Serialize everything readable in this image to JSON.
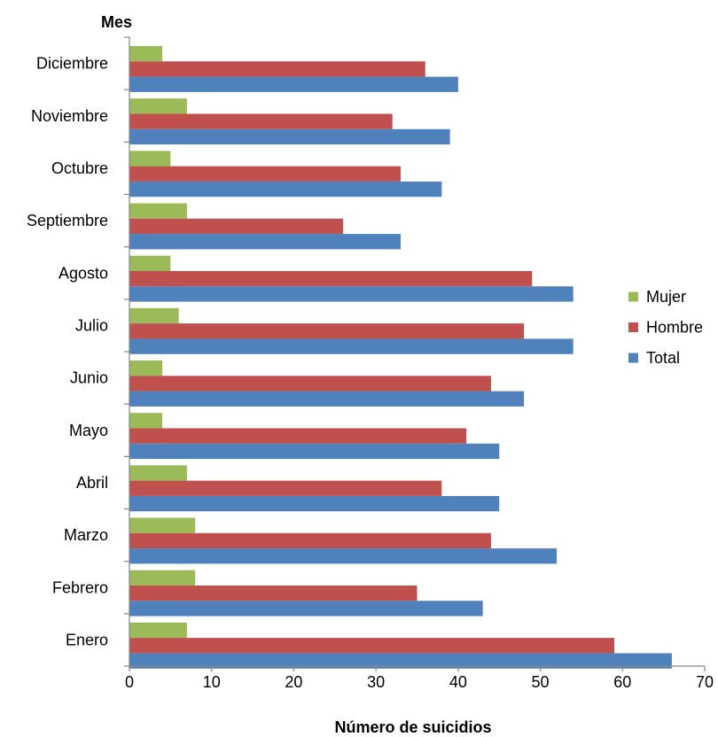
{
  "chart_data": {
    "type": "bar",
    "orientation": "horizontal",
    "title": "",
    "xlabel": "Número de suicidios",
    "ylabel": "Mes",
    "xlim": [
      0,
      70
    ],
    "xticks": [
      0,
      10,
      20,
      30,
      40,
      50,
      60,
      70
    ],
    "grid": false,
    "legend_position": "right",
    "categories": [
      "Enero",
      "Febrero",
      "Marzo",
      "Abril",
      "Mayo",
      "Junio",
      "Julio",
      "Agosto",
      "Septiembre",
      "Octubre",
      "Noviembre",
      "Diciembre"
    ],
    "series": [
      {
        "name": "Mujer",
        "color": "#9BBB59",
        "values": [
          7,
          8,
          8,
          7,
          4,
          4,
          6,
          5,
          7,
          5,
          7,
          4
        ]
      },
      {
        "name": "Hombre",
        "color": "#C0504D",
        "values": [
          59,
          35,
          44,
          38,
          41,
          44,
          48,
          49,
          26,
          33,
          32,
          36
        ]
      },
      {
        "name": "Total",
        "color": "#4F81BD",
        "values": [
          66,
          43,
          52,
          45,
          45,
          48,
          54,
          54,
          33,
          38,
          39,
          40
        ]
      }
    ]
  }
}
